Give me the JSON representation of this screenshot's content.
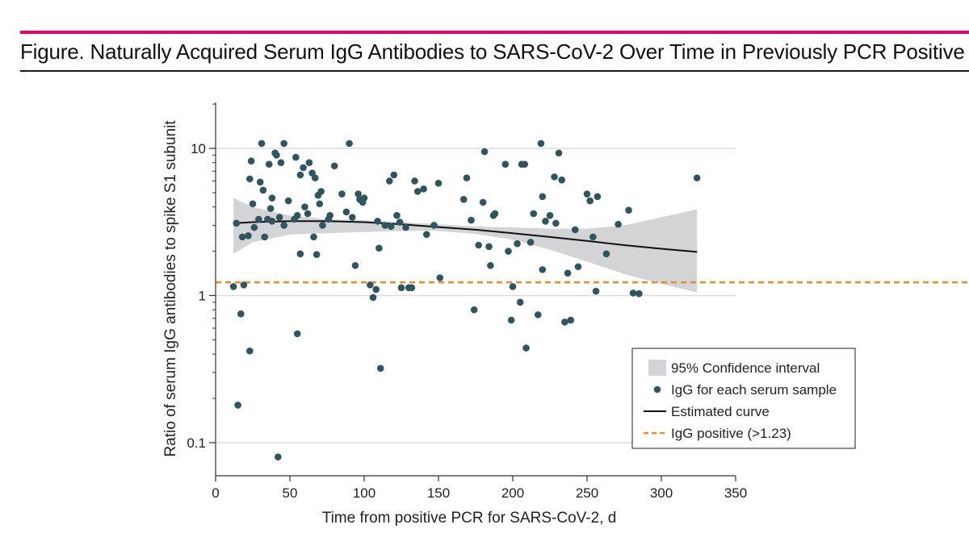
{
  "figure": {
    "title": "Figure. Naturally Acquired Serum IgG Antibodies to SARS-CoV-2 Over Time in Previously PCR Positive HWs",
    "accent_color": "#e0006f"
  },
  "chart_data": {
    "type": "scatter",
    "xlabel": "Time from positive PCR for SARS-CoV-2, d",
    "ylabel": "Ratio of serum IgG antibodies to spike S1 subunit",
    "xlim": [
      0,
      350
    ],
    "ylim": [
      0.07,
      20
    ],
    "y_scale": "log",
    "x_ticks": [
      0,
      50,
      100,
      150,
      200,
      250,
      300,
      350
    ],
    "x_tick_labels": [
      "0",
      "50",
      "100",
      "150",
      "200",
      "250",
      "300",
      "350"
    ],
    "y_ticks": [
      0.1,
      1,
      10
    ],
    "y_tick_labels": [
      "0.1",
      "1",
      "10"
    ],
    "grid": "horizontal",
    "legend_position": "bottom-right",
    "legend": [
      {
        "key": "ci",
        "label": "95% Confidence interval",
        "color": "#d3d4d6"
      },
      {
        "key": "points",
        "label": "IgG for each serum sample",
        "color": "#2f5560"
      },
      {
        "key": "curve",
        "label": "Estimated curve",
        "color": "#111111"
      },
      {
        "key": "threshold",
        "label": "IgG positive (>1.23)",
        "color": "#f08a1c"
      }
    ],
    "threshold": 1.23,
    "points": [
      [
        12,
        1.15
      ],
      [
        14,
        3.1
      ],
      [
        15,
        0.18
      ],
      [
        17,
        0.75
      ],
      [
        18,
        2.5
      ],
      [
        19,
        1.18
      ],
      [
        22,
        2.55
      ],
      [
        23,
        0.42
      ],
      [
        23,
        6.2
      ],
      [
        24,
        8.2
      ],
      [
        25,
        4.2
      ],
      [
        26,
        2.9
      ],
      [
        29,
        3.3
      ],
      [
        30,
        5.9
      ],
      [
        31,
        10.8
      ],
      [
        32,
        5.2
      ],
      [
        33,
        2.5
      ],
      [
        35,
        3.3
      ],
      [
        36,
        7.8
      ],
      [
        37,
        3.9
      ],
      [
        38,
        3.2
      ],
      [
        38,
        4.6
      ],
      [
        40,
        9.3
      ],
      [
        41,
        9.0
      ],
      [
        42,
        0.08
      ],
      [
        43,
        3.4
      ],
      [
        44,
        8.0
      ],
      [
        46,
        10.8
      ],
      [
        46,
        3.0
      ],
      [
        49,
        4.4
      ],
      [
        53,
        3.3
      ],
      [
        54,
        8.7
      ],
      [
        55,
        0.55
      ],
      [
        55,
        3.5
      ],
      [
        57,
        6.6
      ],
      [
        57,
        1.92
      ],
      [
        59,
        7.4
      ],
      [
        60,
        4.0
      ],
      [
        62,
        3.6
      ],
      [
        63,
        8.0
      ],
      [
        65,
        6.8
      ],
      [
        66,
        2.5
      ],
      [
        67,
        6.3
      ],
      [
        68,
        1.9
      ],
      [
        69,
        4.8
      ],
      [
        70,
        4.2
      ],
      [
        71,
        5.1
      ],
      [
        72,
        3.0
      ],
      [
        76,
        3.3
      ],
      [
        77,
        3.5
      ],
      [
        80,
        7.6
      ],
      [
        85,
        4.9
      ],
      [
        88,
        3.7
      ],
      [
        90,
        10.8
      ],
      [
        92,
        3.4
      ],
      [
        94,
        1.6
      ],
      [
        96,
        4.9
      ],
      [
        97,
        4.5
      ],
      [
        99,
        4.3
      ],
      [
        100,
        4.6
      ],
      [
        104,
        1.18
      ],
      [
        106,
        0.97
      ],
      [
        108,
        1.1
      ],
      [
        109,
        3.2
      ],
      [
        110,
        2.1
      ],
      [
        111,
        0.32
      ],
      [
        114,
        3.0
      ],
      [
        117,
        6.0
      ],
      [
        118,
        2.95
      ],
      [
        120,
        6.6
      ],
      [
        122,
        3.5
      ],
      [
        124,
        3.15
      ],
      [
        125,
        1.13
      ],
      [
        128,
        2.9
      ],
      [
        130,
        1.13
      ],
      [
        132,
        1.13
      ],
      [
        134,
        6.0
      ],
      [
        136,
        5.1
      ],
      [
        140,
        5.3
      ],
      [
        142,
        2.6
      ],
      [
        147,
        3.0
      ],
      [
        150,
        5.8
      ],
      [
        151,
        1.32
      ],
      [
        167,
        4.5
      ],
      [
        169,
        6.3
      ],
      [
        172,
        3.25
      ],
      [
        174,
        0.8
      ],
      [
        177,
        2.2
      ],
      [
        180,
        4.3
      ],
      [
        181,
        9.5
      ],
      [
        184,
        2.15
      ],
      [
        185,
        1.6
      ],
      [
        187,
        3.5
      ],
      [
        188,
        3.6
      ],
      [
        195,
        7.8
      ],
      [
        197,
        2.0
      ],
      [
        199,
        0.68
      ],
      [
        200,
        1.15
      ],
      [
        203,
        2.25
      ],
      [
        205,
        0.9
      ],
      [
        206,
        7.8
      ],
      [
        208,
        7.8
      ],
      [
        209,
        0.44
      ],
      [
        212,
        2.3
      ],
      [
        214,
        3.6
      ],
      [
        217,
        0.74
      ],
      [
        219,
        10.8
      ],
      [
        220,
        4.7
      ],
      [
        220,
        1.5
      ],
      [
        222,
        3.2
      ],
      [
        225,
        3.5
      ],
      [
        228,
        6.4
      ],
      [
        229,
        3.1
      ],
      [
        231,
        9.3
      ],
      [
        233,
        6.1
      ],
      [
        235,
        0.66
      ],
      [
        237,
        1.42
      ],
      [
        239,
        0.68
      ],
      [
        242,
        2.8
      ],
      [
        244,
        1.57
      ],
      [
        250,
        4.9
      ],
      [
        252,
        4.4
      ],
      [
        254,
        2.5
      ],
      [
        256,
        1.07
      ],
      [
        257,
        4.7
      ],
      [
        263,
        1.92
      ],
      [
        271,
        3.05
      ],
      [
        278,
        3.8
      ],
      [
        281,
        1.04
      ],
      [
        285,
        1.03
      ],
      [
        324,
        6.3
      ]
    ],
    "curve": {
      "x": [
        12,
        25,
        50,
        75,
        100,
        125,
        150,
        175,
        200,
        225,
        250,
        275,
        300,
        324
      ],
      "y": [
        3.1,
        3.15,
        3.2,
        3.2,
        3.15,
        3.05,
        2.92,
        2.8,
        2.65,
        2.5,
        2.35,
        2.2,
        2.08,
        1.98
      ]
    },
    "confidence_band": {
      "x": [
        12,
        25,
        50,
        75,
        100,
        125,
        150,
        175,
        200,
        225,
        250,
        275,
        300,
        324
      ],
      "upper": [
        4.6,
        4.0,
        3.5,
        3.3,
        3.25,
        3.15,
        3.05,
        2.95,
        2.9,
        2.85,
        2.85,
        3.0,
        3.4,
        3.85
      ],
      "lower": [
        1.92,
        2.3,
        2.6,
        2.65,
        2.7,
        2.75,
        2.75,
        2.62,
        2.4,
        2.05,
        1.7,
        1.4,
        1.2,
        1.05
      ]
    }
  }
}
